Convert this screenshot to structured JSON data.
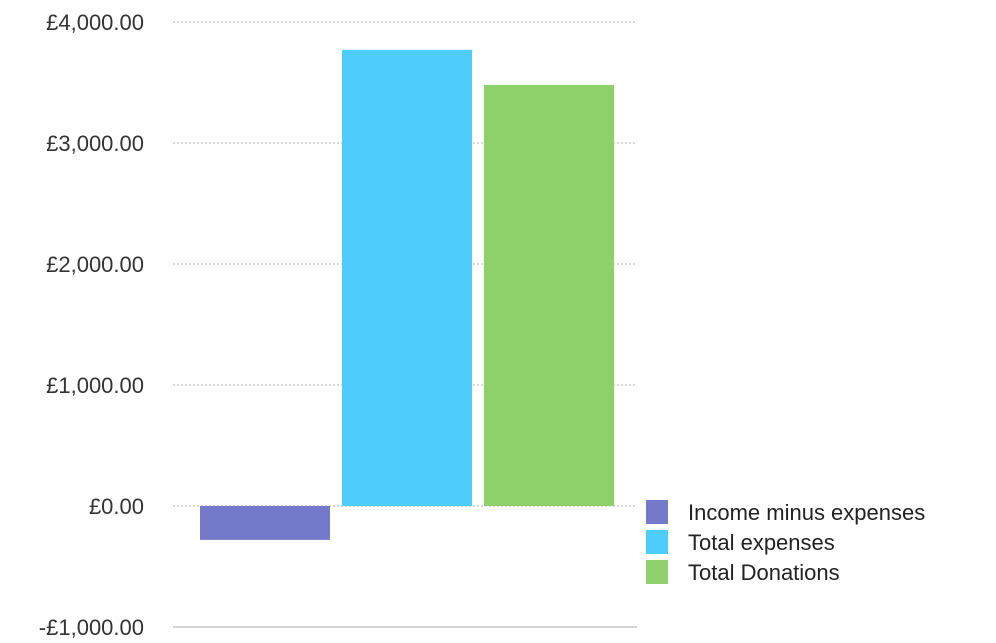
{
  "chart_data": {
    "type": "bar",
    "title": "",
    "xlabel": "",
    "ylabel": "",
    "ylim": [
      -1000,
      4000
    ],
    "yticks": [
      {
        "value": 4000,
        "label": "£4,000.00"
      },
      {
        "value": 3000,
        "label": "£3,000.00"
      },
      {
        "value": 2000,
        "label": "£2,000.00"
      },
      {
        "value": 1000,
        "label": "£1,000.00"
      },
      {
        "value": 0,
        "label": "£0.00"
      },
      {
        "value": -1000,
        "label": "-£1,000.00"
      }
    ],
    "grid": true,
    "legend_position": "right",
    "series": [
      {
        "name": "Income minus expenses",
        "value": -280,
        "color": "#7479c9"
      },
      {
        "name": "Total expenses",
        "value": 3770,
        "color": "#4ecdfc"
      },
      {
        "name": "Total Donations",
        "value": 3480,
        "color": "#8ed16b"
      }
    ]
  }
}
